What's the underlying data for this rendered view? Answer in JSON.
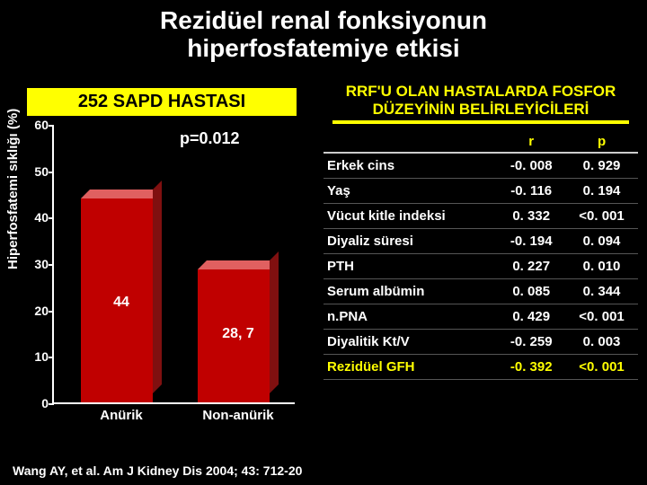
{
  "title_line1": "Rezidüel renal fonksiyonun",
  "title_line2": "hiperfosfatemiye etkisi",
  "left_subtitle": "252 SAPD HASTASI",
  "right_subtitle_l1": "RRF'U OLAN HASTALARDA FOSFOR",
  "right_subtitle_l2": "DÜZEYİNİN BELİRLEYİCİLERİ",
  "citation": "Wang AY, et al. Am J Kidney Dis 2004; 43: 712-20",
  "chart": {
    "type": "bar",
    "y_label": "Hiperfosfatemi sıklığı (%)",
    "p_text": "p=0.012",
    "ylim_max": 60,
    "ytick_step": 10,
    "bar_colors": {
      "front": "#c00000",
      "top": "#e06060",
      "side": "#801010"
    },
    "bars": [
      {
        "label": "Anürik",
        "value": 44,
        "display": "44"
      },
      {
        "label": "Non-anürik",
        "value": 28.7,
        "display": "28, 7"
      }
    ]
  },
  "table": {
    "headers": {
      "c1": "",
      "c2": "r",
      "c3": "p"
    },
    "rows": [
      {
        "name": "Erkek cins",
        "r": "-0. 008",
        "p": "0. 929",
        "hl": false
      },
      {
        "name": "Yaş",
        "r": "-0. 116",
        "p": "0. 194",
        "hl": false
      },
      {
        "name": "Vücut kitle indeksi",
        "r": "0. 332",
        "p": "<0. 001",
        "hl": false
      },
      {
        "name": "Diyaliz süresi",
        "r": "-0. 194",
        "p": "0. 094",
        "hl": false
      },
      {
        "name": "PTH",
        "r": "0. 227",
        "p": "0. 010",
        "hl": false
      },
      {
        "name": "Serum albümin",
        "r": "0. 085",
        "p": "0. 344",
        "hl": false
      },
      {
        "name": "n.PNA",
        "r": "0. 429",
        "p": "<0. 001",
        "hl": false
      },
      {
        "name": "Diyalitik Kt/V",
        "r": "-0. 259",
        "p": "0. 003",
        "hl": false
      },
      {
        "name": "Rezidüel GFH",
        "r": "-0. 392",
        "p": "<0. 001",
        "hl": true
      }
    ]
  }
}
